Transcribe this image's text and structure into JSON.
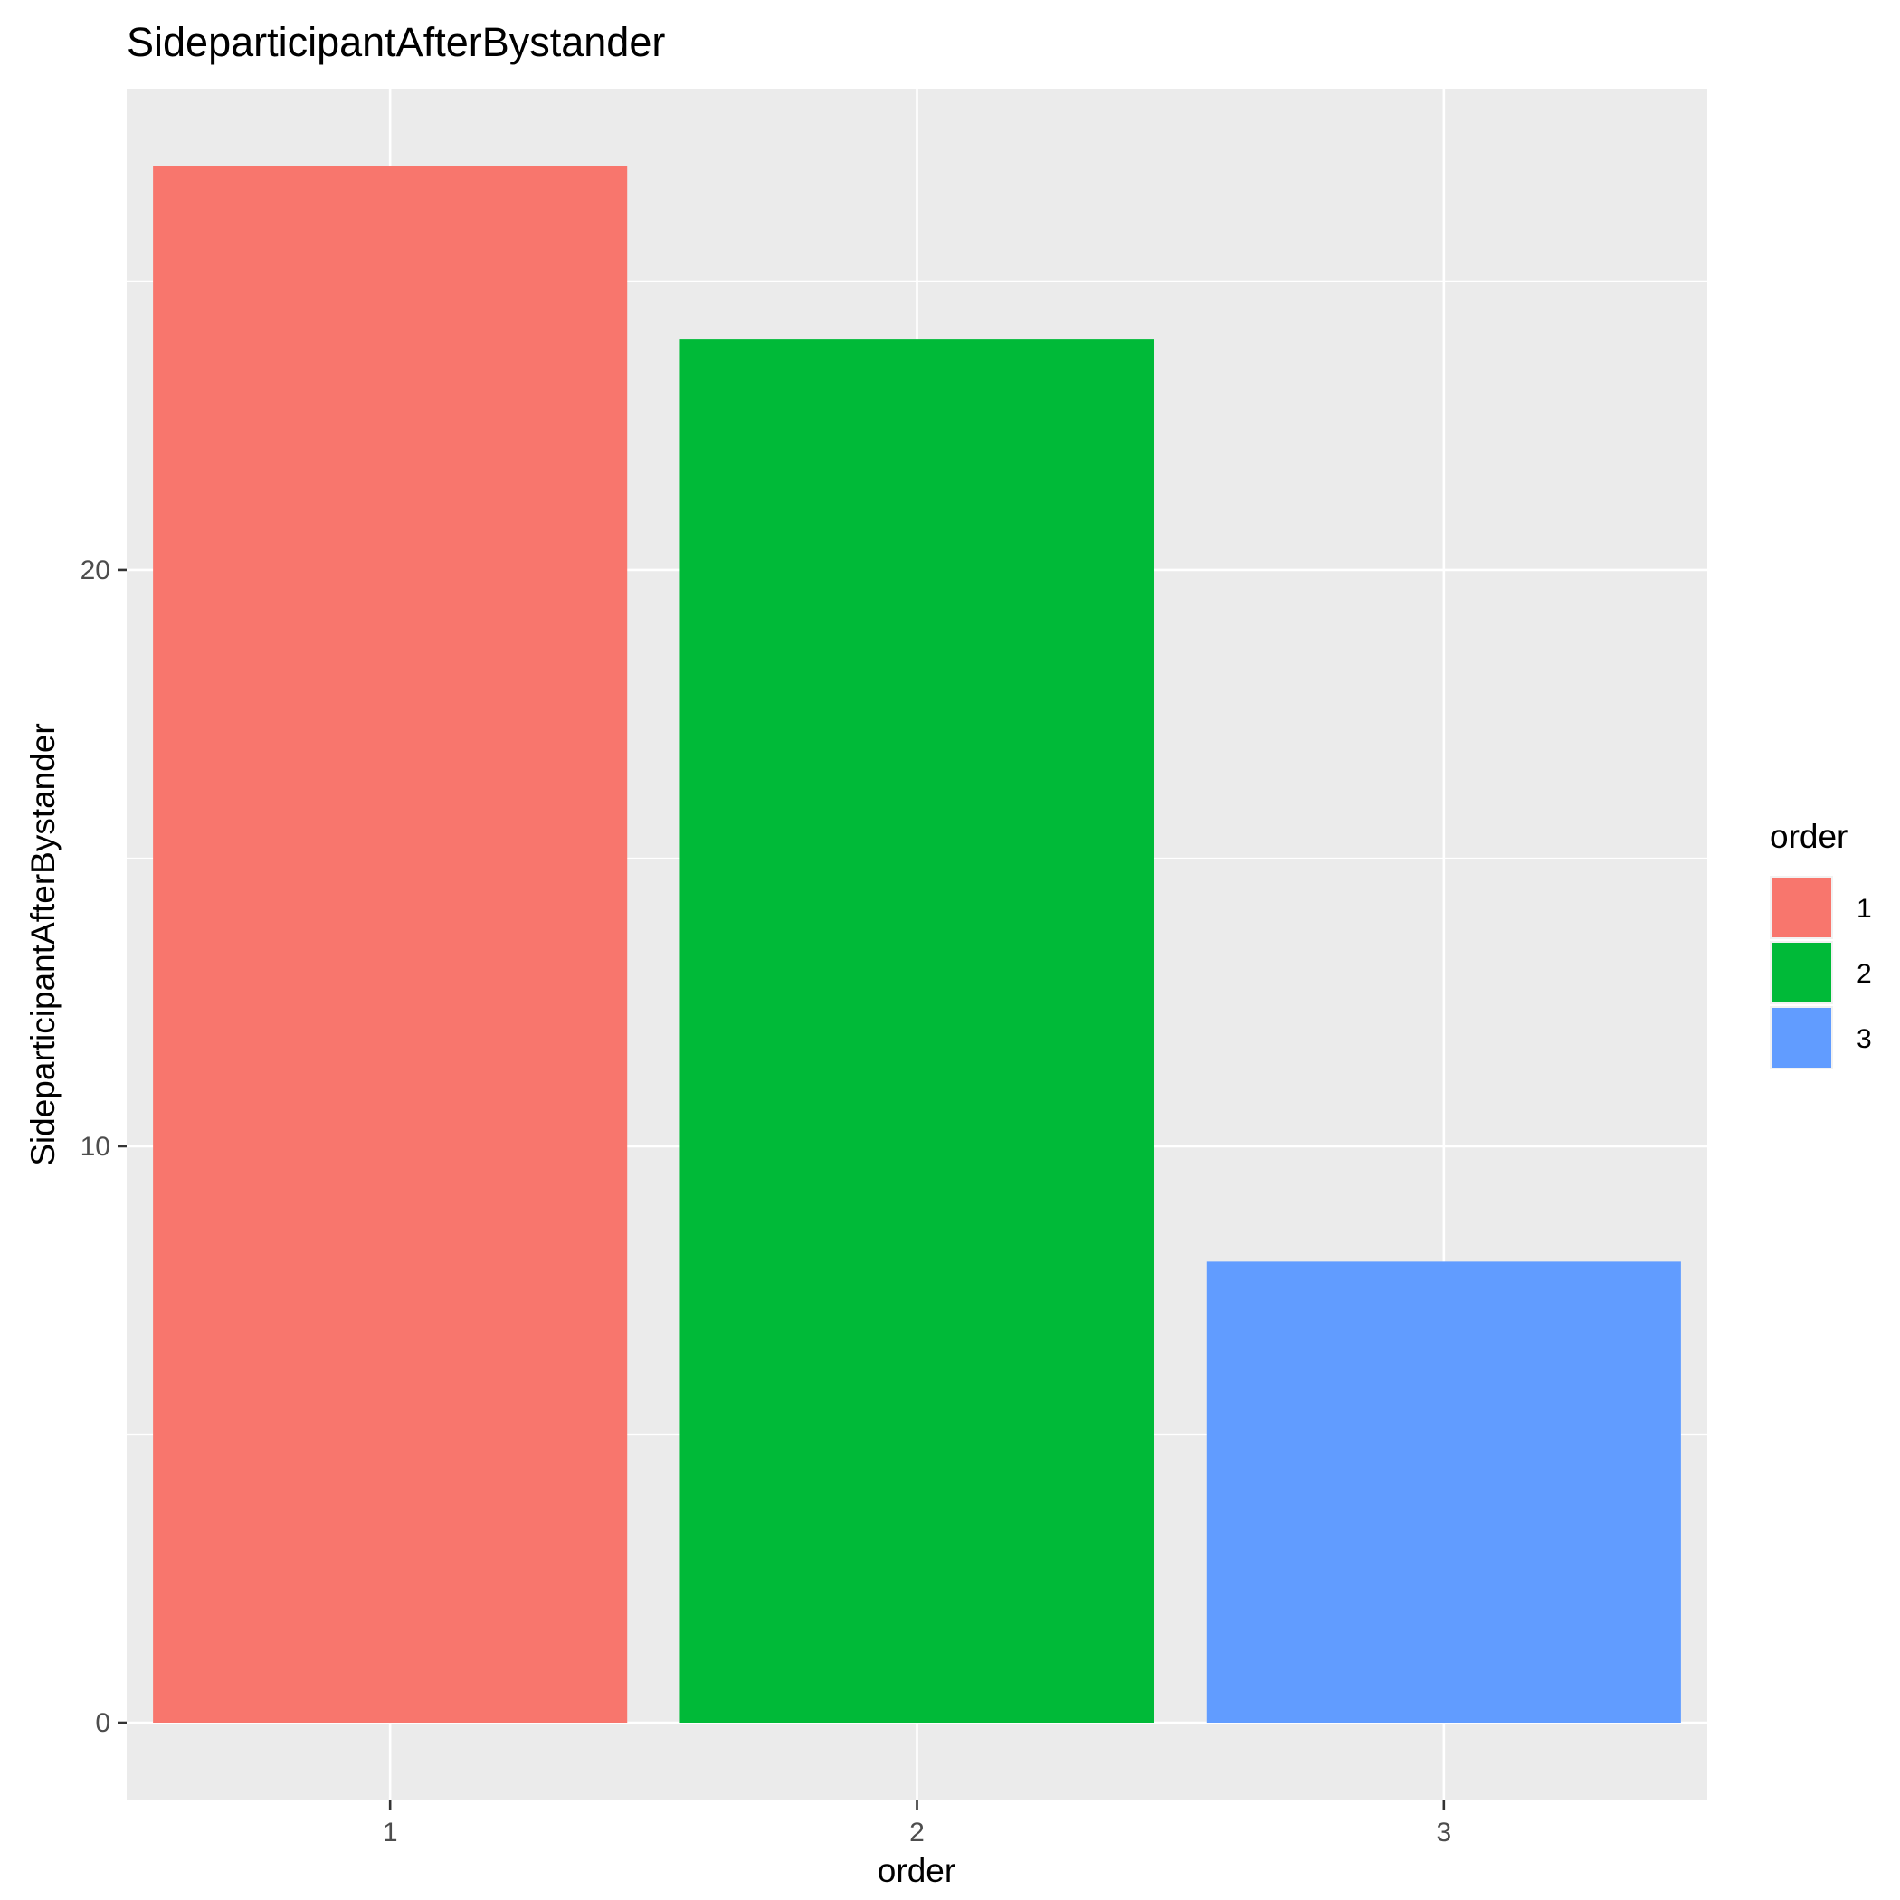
{
  "chart_data": {
    "type": "bar",
    "title": "SideparticipantAfterBystander",
    "xlabel": "order",
    "ylabel": "SideparticipantAfterBystander",
    "categories": [
      "1",
      "2",
      "3"
    ],
    "values": [
      27,
      24,
      8
    ],
    "ylim": [
      -1.35,
      28.35
    ],
    "yticks": [
      0,
      10,
      20
    ],
    "xticks": [
      "1",
      "2",
      "3"
    ],
    "colors": [
      "#F8766D",
      "#00BA38",
      "#619CFF"
    ],
    "panel_background": "#EBEBEB",
    "grid": true,
    "legend": {
      "title": "order",
      "placement": "right",
      "items": [
        "1",
        "2",
        "3"
      ]
    }
  }
}
